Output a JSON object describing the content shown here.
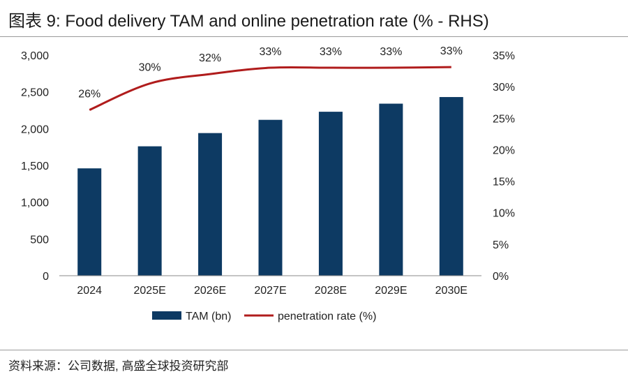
{
  "title": "图表 9: Food delivery TAM and online penetration rate (% - RHS)",
  "source": "资料来源：公司数据, 高盛全球投资研究部",
  "colors": {
    "bar": "#0d3a63",
    "line": "#b01c1c",
    "rule": "#9a9a9a"
  },
  "chart_data": {
    "type": "bar",
    "categories": [
      "2024",
      "2025E",
      "2026E",
      "2027E",
      "2028E",
      "2029E",
      "2030E"
    ],
    "series": [
      {
        "name": "TAM (bn)",
        "type": "bar",
        "axis": "left",
        "values": [
          1460,
          1760,
          1940,
          2120,
          2230,
          2340,
          2430
        ]
      },
      {
        "name": "penetration rate (%)",
        "type": "line",
        "axis": "right",
        "values": [
          26.3,
          30.5,
          32.0,
          33.0,
          33.0,
          33.0,
          33.1
        ]
      }
    ],
    "data_labels": [
      "26%",
      "30%",
      "32%",
      "33%",
      "33%",
      "33%",
      "33%"
    ],
    "y_left": {
      "ylim": [
        0,
        3000
      ],
      "ticks": [
        0,
        500,
        1000,
        1500,
        2000,
        2500,
        3000
      ],
      "tick_labels": [
        "0",
        "500",
        "1,000",
        "1,500",
        "2,000",
        "2,500",
        "3,000"
      ]
    },
    "y_right": {
      "ylim": [
        0,
        35
      ],
      "ticks": [
        0,
        5,
        10,
        15,
        20,
        25,
        30,
        35
      ],
      "tick_labels": [
        "0%",
        "5%",
        "10%",
        "15%",
        "20%",
        "25%",
        "30%",
        "35%"
      ]
    },
    "legend_position": "bottom",
    "grid": false
  }
}
